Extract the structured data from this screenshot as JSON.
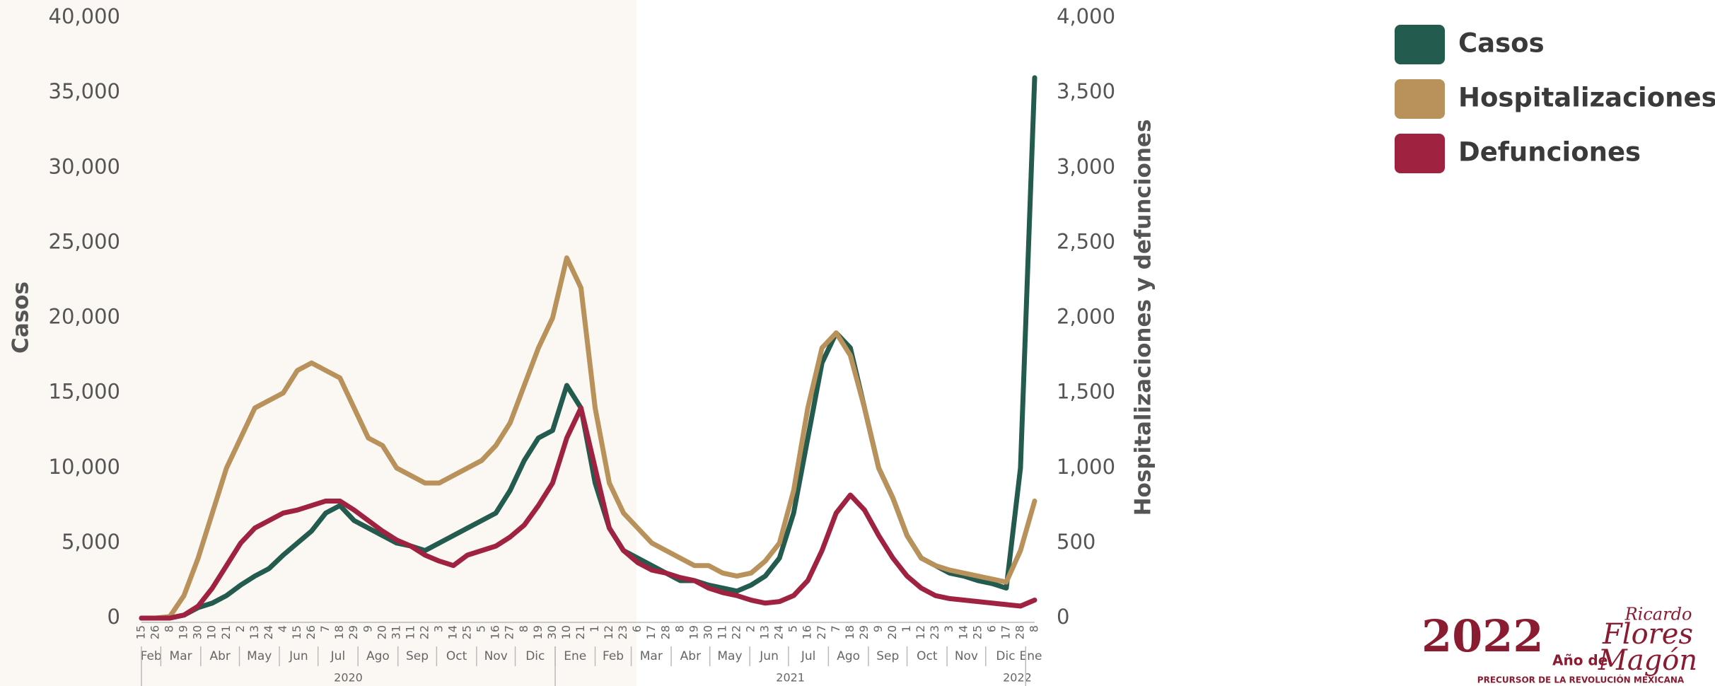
{
  "chart_data": {
    "type": "line",
    "y_label": "Casos",
    "y2_label": "Hospitalizaciones y defunciones",
    "xlim": [
      "2020-02-15",
      "2022-01-08"
    ],
    "x": [
      "2020-02-15",
      "2020-02-26",
      "2020-03-08",
      "2020-03-19",
      "2020-03-30",
      "2020-04-10",
      "2020-04-21",
      "2020-05-02",
      "2020-05-13",
      "2020-05-24",
      "2020-06-04",
      "2020-06-15",
      "2020-06-26",
      "2020-07-07",
      "2020-07-18",
      "2020-07-29",
      "2020-08-09",
      "2020-08-20",
      "2020-08-31",
      "2020-09-11",
      "2020-09-22",
      "2020-10-03",
      "2020-10-14",
      "2020-10-25",
      "2020-11-05",
      "2020-11-16",
      "2020-11-27",
      "2020-12-08",
      "2020-12-19",
      "2020-12-30",
      "2021-01-10",
      "2021-01-21",
      "2021-02-01",
      "2021-02-12",
      "2021-02-23",
      "2021-03-06",
      "2021-03-17",
      "2021-03-28",
      "2021-04-08",
      "2021-04-19",
      "2021-04-30",
      "2021-05-11",
      "2021-05-22",
      "2021-06-02",
      "2021-06-13",
      "2021-06-24",
      "2021-07-05",
      "2021-07-16",
      "2021-07-27",
      "2021-08-07",
      "2021-08-18",
      "2021-08-29",
      "2021-09-09",
      "2021-09-20",
      "2021-10-01",
      "2021-10-12",
      "2021-10-23",
      "2021-11-03",
      "2021-11-14",
      "2021-11-25",
      "2021-12-06",
      "2021-12-17",
      "2021-12-28",
      "2022-01-08"
    ],
    "xticks": [
      {
        "value": "2020-02-15",
        "label": "15"
      },
      {
        "value": "2020-02-26",
        "label": "26"
      },
      {
        "value": "2020-03-08",
        "label": "8"
      },
      {
        "value": "2020-03-19",
        "label": "19"
      },
      {
        "value": "2020-03-30",
        "label": "30"
      },
      {
        "value": "2020-04-10",
        "label": "10"
      },
      {
        "value": "2020-04-21",
        "label": "21"
      },
      {
        "value": "2020-05-02",
        "label": "2"
      },
      {
        "value": "2020-05-13",
        "label": "13"
      },
      {
        "value": "2020-05-24",
        "label": "24"
      },
      {
        "value": "2020-06-04",
        "label": "4"
      },
      {
        "value": "2020-06-15",
        "label": "15"
      },
      {
        "value": "2020-06-26",
        "label": "26"
      },
      {
        "value": "2020-07-07",
        "label": "7"
      },
      {
        "value": "2020-07-18",
        "label": "18"
      },
      {
        "value": "2020-07-29",
        "label": "29"
      },
      {
        "value": "2020-08-09",
        "label": "9"
      },
      {
        "value": "2020-08-20",
        "label": "20"
      },
      {
        "value": "2020-08-31",
        "label": "31"
      },
      {
        "value": "2020-09-11",
        "label": "11"
      },
      {
        "value": "2020-09-22",
        "label": "22"
      },
      {
        "value": "2020-10-03",
        "label": "3"
      },
      {
        "value": "2020-10-14",
        "label": "14"
      },
      {
        "value": "2020-10-25",
        "label": "25"
      },
      {
        "value": "2020-11-05",
        "label": "5"
      },
      {
        "value": "2020-11-16",
        "label": "16"
      },
      {
        "value": "2020-11-27",
        "label": "27"
      },
      {
        "value": "2020-12-08",
        "label": "8"
      },
      {
        "value": "2020-12-19",
        "label": "19"
      },
      {
        "value": "2020-12-30",
        "label": "30"
      },
      {
        "value": "2021-01-10",
        "label": "10"
      },
      {
        "value": "2021-01-21",
        "label": "21"
      },
      {
        "value": "2021-02-01",
        "label": "1"
      },
      {
        "value": "2021-02-12",
        "label": "12"
      },
      {
        "value": "2021-02-23",
        "label": "23"
      },
      {
        "value": "2021-03-06",
        "label": "6"
      },
      {
        "value": "2021-03-17",
        "label": "17"
      },
      {
        "value": "2021-03-28",
        "label": "28"
      },
      {
        "value": "2021-04-08",
        "label": "8"
      },
      {
        "value": "2021-04-19",
        "label": "19"
      },
      {
        "value": "2021-04-30",
        "label": "30"
      },
      {
        "value": "2021-05-11",
        "label": "11"
      },
      {
        "value": "2021-05-22",
        "label": "22"
      },
      {
        "value": "2021-06-02",
        "label": "2"
      },
      {
        "value": "2021-06-13",
        "label": "13"
      },
      {
        "value": "2021-06-24",
        "label": "24"
      },
      {
        "value": "2021-07-05",
        "label": "5"
      },
      {
        "value": "2021-07-16",
        "label": "16"
      },
      {
        "value": "2021-07-27",
        "label": "27"
      },
      {
        "value": "2021-08-07",
        "label": "7"
      },
      {
        "value": "2021-08-18",
        "label": "18"
      },
      {
        "value": "2021-08-29",
        "label": "29"
      },
      {
        "value": "2021-09-09",
        "label": "9"
      },
      {
        "value": "2021-09-20",
        "label": "20"
      },
      {
        "value": "2021-10-01",
        "label": "1"
      },
      {
        "value": "2021-10-12",
        "label": "12"
      },
      {
        "value": "2021-10-23",
        "label": "23"
      },
      {
        "value": "2021-11-03",
        "label": "3"
      },
      {
        "value": "2021-11-14",
        "label": "14"
      },
      {
        "value": "2021-11-25",
        "label": "25"
      },
      {
        "value": "2021-12-06",
        "label": "6"
      },
      {
        "value": "2021-12-17",
        "label": "17"
      },
      {
        "value": "2021-12-28",
        "label": "28"
      },
      {
        "value": "2022-01-08",
        "label": "8"
      }
    ],
    "x_months": [
      {
        "value": "2020-02",
        "label": "Feb"
      },
      {
        "value": "2020-03",
        "label": "Mar"
      },
      {
        "value": "2020-04",
        "label": "Abr"
      },
      {
        "value": "2020-05",
        "label": "May"
      },
      {
        "value": "2020-06",
        "label": "Jun"
      },
      {
        "value": "2020-07",
        "label": "Jul"
      },
      {
        "value": "2020-08",
        "label": "Ago"
      },
      {
        "value": "2020-09",
        "label": "Sep"
      },
      {
        "value": "2020-10",
        "label": "Oct"
      },
      {
        "value": "2020-11",
        "label": "Nov"
      },
      {
        "value": "2020-12",
        "label": "Dic"
      },
      {
        "value": "2021-01",
        "label": "Ene"
      },
      {
        "value": "2021-02",
        "label": "Feb"
      },
      {
        "value": "2021-03",
        "label": "Mar"
      },
      {
        "value": "2021-04",
        "label": "Abr"
      },
      {
        "value": "2021-05",
        "label": "May"
      },
      {
        "value": "2021-06",
        "label": "Jun"
      },
      {
        "value": "2021-07",
        "label": "Jul"
      },
      {
        "value": "2021-08",
        "label": "Ago"
      },
      {
        "value": "2021-09",
        "label": "Sep"
      },
      {
        "value": "2021-10",
        "label": "Oct"
      },
      {
        "value": "2021-11",
        "label": "Nov"
      },
      {
        "value": "2021-12",
        "label": "Dic"
      },
      {
        "value": "2022-01",
        "label": "Ene"
      }
    ],
    "x_years": [
      2020,
      2021,
      2022
    ],
    "ylim": [
      0,
      40000
    ],
    "yticks": [
      0,
      {
        "value": 5000,
        "label": "5,000"
      },
      {
        "value": 10000,
        "label": "10,000"
      },
      {
        "value": 15000,
        "label": "15,000"
      },
      {
        "value": 20000,
        "label": "20,000"
      },
      {
        "value": 25000,
        "label": "25,000"
      },
      {
        "value": 30000,
        "label": "30,000"
      },
      {
        "value": 35000,
        "label": "35,000"
      },
      {
        "value": 40000,
        "label": "40,000"
      }
    ],
    "y2lim": [
      0,
      4000
    ],
    "y2ticks": [
      0,
      500,
      {
        "value": 1000,
        "label": "1,000"
      },
      {
        "value": 1500,
        "label": "1,500"
      },
      {
        "value": 2000,
        "label": "2,000"
      },
      {
        "value": 2500,
        "label": "2,500"
      },
      {
        "value": 3000,
        "label": "3,000"
      },
      {
        "value": 3500,
        "label": "3,500"
      },
      {
        "value": 4000,
        "label": "4,000"
      }
    ],
    "legend": "top-right",
    "series": [
      {
        "name": "Casos",
        "color": "#235b4e",
        "values": [
          0,
          0,
          10,
          200,
          700,
          1000,
          1500,
          2200,
          2800,
          3300,
          4200,
          5000,
          5800,
          7000,
          7500,
          6500,
          6000,
          5500,
          5000,
          4800,
          4500,
          5000,
          5500,
          6000,
          6500,
          7000,
          8500,
          10500,
          12000,
          12500,
          15500,
          14000,
          9000,
          6000,
          4500,
          4000,
          3500,
          3000,
          2500,
          2500,
          2200,
          2000,
          1800,
          2200,
          2800,
          4000,
          7000,
          12000,
          17000,
          19000,
          18000,
          14000,
          10000,
          8000,
          5500,
          4000,
          3500,
          3000,
          2800,
          2500,
          2300,
          2000,
          10000,
          36000
        ]
      },
      {
        "name": "Hospitalizaciones",
        "color": "#b8915b",
        "axis": "y2",
        "values": [
          0,
          0,
          10,
          150,
          400,
          700,
          1000,
          1200,
          1400,
          1450,
          1500,
          1650,
          1700,
          1650,
          1600,
          1400,
          1200,
          1150,
          1000,
          950,
          900,
          900,
          950,
          1000,
          1050,
          1150,
          1300,
          1550,
          1800,
          2000,
          2400,
          2200,
          1400,
          900,
          700,
          600,
          500,
          450,
          400,
          350,
          350,
          300,
          280,
          300,
          380,
          500,
          850,
          1400,
          1800,
          1900,
          1750,
          1400,
          1000,
          800,
          550,
          400,
          350,
          320,
          300,
          280,
          260,
          240,
          450,
          780
        ]
      },
      {
        "name": "Defunciones",
        "color": "#9f2241",
        "axis": "y2",
        "values": [
          0,
          0,
          0,
          20,
          80,
          200,
          350,
          500,
          600,
          650,
          700,
          720,
          750,
          780,
          780,
          720,
          650,
          580,
          520,
          480,
          420,
          380,
          350,
          420,
          450,
          480,
          540,
          620,
          750,
          900,
          1200,
          1400,
          1000,
          600,
          450,
          370,
          320,
          300,
          270,
          250,
          200,
          170,
          150,
          120,
          100,
          110,
          150,
          250,
          450,
          700,
          820,
          720,
          550,
          400,
          280,
          200,
          150,
          130,
          120,
          110,
          100,
          90,
          80,
          120
        ]
      }
    ]
  },
  "logo": {
    "year": "2022",
    "prefix": "Año de",
    "name1": "Ricardo",
    "name2": "Flores",
    "name3": "Magón",
    "tagline": "PRECURSOR DE LA REVOLUCIÓN MEXICANA"
  }
}
